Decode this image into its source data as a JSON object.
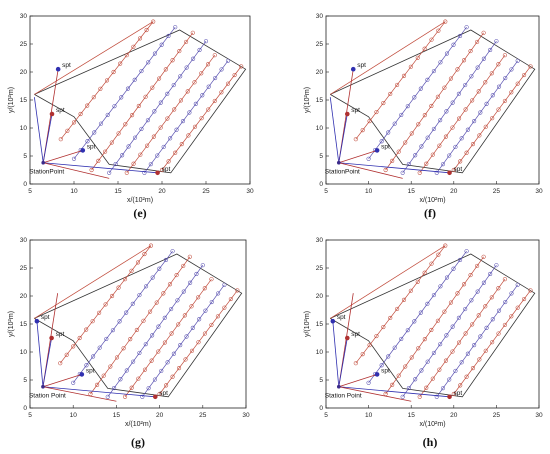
{
  "panel_labels": [
    "(e)",
    "(f)",
    "(g)",
    "(h)"
  ],
  "colors": {
    "boundary": "#333333",
    "red": "#c04a3a",
    "blue": "#5850b0",
    "station_red": "#b03030",
    "station_blue": "#3030b0"
  },
  "chart_data": [
    {
      "type": "line",
      "panel": "(e)",
      "xlabel": "x/(10²m)",
      "ylabel": "y/(10²m)",
      "xlim": [
        5,
        30
      ],
      "ylim": [
        0,
        30
      ],
      "xticks": [
        5,
        10,
        15,
        20,
        25,
        30
      ],
      "yticks": [
        0,
        5,
        10,
        15,
        20,
        25,
        30
      ],
      "station_point": {
        "label": "StationPoint",
        "x": 6.5,
        "y": 3.8
      },
      "spt_label": "spt",
      "boundary": [
        [
          5.5,
          16
        ],
        [
          10,
          12
        ],
        [
          14,
          3.5
        ],
        [
          21,
          2
        ],
        [
          29.5,
          20.5
        ],
        [
          22,
          27.5
        ],
        [
          5.5,
          16
        ]
      ],
      "spt_points": [
        {
          "label": "spt",
          "x": 8.2,
          "y": 20.5,
          "color": "blue"
        },
        {
          "label": "spt",
          "x": 7.5,
          "y": 12.5,
          "color": "red"
        },
        {
          "label": "spt",
          "x": 11,
          "y": 6,
          "color": "blue"
        },
        {
          "label": "spt",
          "x": 19.5,
          "y": 2,
          "color": "red"
        }
      ],
      "station_links": [
        [
          5.5,
          15.5
        ],
        [
          8.2,
          20.5
        ],
        [
          7.5,
          12.5
        ],
        [
          11,
          6
        ],
        [
          19.5,
          2
        ],
        [
          14,
          1
        ]
      ],
      "sweep_lines": [
        {
          "color": "red",
          "start": [
            8.5,
            8
          ],
          "end": [
            19,
            29
          ]
        },
        {
          "color": "blue",
          "start": [
            10,
            4.5
          ],
          "end": [
            21.5,
            28
          ]
        },
        {
          "color": "red",
          "start": [
            12,
            2.5
          ],
          "end": [
            23.5,
            27
          ]
        },
        {
          "color": "blue",
          "start": [
            14,
            2
          ],
          "end": [
            25,
            25.5
          ]
        },
        {
          "color": "red",
          "start": [
            16,
            2
          ],
          "end": [
            26,
            23
          ]
        },
        {
          "color": "blue",
          "start": [
            18,
            2
          ],
          "end": [
            27.5,
            22
          ]
        },
        {
          "color": "red",
          "start": [
            20,
            2.5
          ],
          "end": [
            29,
            21
          ]
        }
      ],
      "transit_lines": [
        {
          "color": "red",
          "start": [
            5.5,
            16
          ],
          "end": [
            19,
            29
          ]
        }
      ]
    },
    {
      "type": "line",
      "panel": "(f)",
      "xlabel": "x/(10²m)",
      "ylabel": "y/(10²m)",
      "xlim": [
        5,
        30
      ],
      "ylim": [
        0,
        30
      ],
      "xticks": [
        5,
        10,
        15,
        20,
        25,
        30
      ],
      "yticks": [
        0,
        5,
        10,
        15,
        20,
        25,
        30
      ],
      "station_point": {
        "label": "StationPoint",
        "x": 6.5,
        "y": 3.8
      },
      "spt_label": "spt",
      "boundary": [
        [
          5.5,
          16
        ],
        [
          10,
          12
        ],
        [
          14,
          3.5
        ],
        [
          21,
          2
        ],
        [
          29.5,
          20.5
        ],
        [
          22,
          27.5
        ],
        [
          5.5,
          16
        ]
      ],
      "spt_points": [
        {
          "label": "spt",
          "x": 8.2,
          "y": 20.5,
          "color": "blue"
        },
        {
          "label": "spt",
          "x": 7.5,
          "y": 12.5,
          "color": "red"
        },
        {
          "label": "spt",
          "x": 11,
          "y": 6,
          "color": "blue"
        },
        {
          "label": "spt",
          "x": 19.5,
          "y": 2,
          "color": "red"
        }
      ],
      "station_links": [
        [
          5.5,
          15.5
        ],
        [
          8.2,
          20.5
        ],
        [
          7.5,
          12.5
        ],
        [
          11,
          6
        ],
        [
          19.5,
          2
        ],
        [
          14,
          1
        ]
      ],
      "sweep_lines": [
        {
          "color": "red",
          "start": [
            8.5,
            8
          ],
          "end": [
            19,
            29
          ]
        },
        {
          "color": "blue",
          "start": [
            10,
            4.5
          ],
          "end": [
            21.5,
            28
          ]
        },
        {
          "color": "red",
          "start": [
            12,
            2.5
          ],
          "end": [
            23.5,
            27
          ]
        },
        {
          "color": "blue",
          "start": [
            14,
            2
          ],
          "end": [
            25,
            25.5
          ]
        },
        {
          "color": "red",
          "start": [
            16,
            2
          ],
          "end": [
            26,
            23
          ]
        },
        {
          "color": "blue",
          "start": [
            18,
            2
          ],
          "end": [
            27.5,
            22
          ]
        },
        {
          "color": "red",
          "start": [
            20,
            2.5
          ],
          "end": [
            29,
            21
          ]
        }
      ],
      "transit_lines": [
        {
          "color": "red",
          "start": [
            5.5,
            16
          ],
          "end": [
            19,
            29
          ]
        }
      ]
    },
    {
      "type": "line",
      "panel": "(g)",
      "xlabel": "x/(10²m)",
      "ylabel": "y/(10²m)",
      "xlim": [
        5,
        30
      ],
      "ylim": [
        0,
        30
      ],
      "xticks": [
        5,
        10,
        15,
        20,
        25,
        30
      ],
      "yticks": [
        0,
        5,
        10,
        15,
        20,
        25,
        30
      ],
      "station_point": {
        "label": "Station Point",
        "x": 6.5,
        "y": 3.8
      },
      "spt_label": "spt",
      "boundary": [
        [
          5.5,
          16
        ],
        [
          10,
          12
        ],
        [
          14,
          3.5
        ],
        [
          21,
          2
        ],
        [
          29.5,
          20.5
        ],
        [
          22,
          27.5
        ],
        [
          5.5,
          16
        ]
      ],
      "spt_points": [
        {
          "label": "spt",
          "x": 5.8,
          "y": 15.5,
          "color": "blue"
        },
        {
          "label": "spt",
          "x": 7.5,
          "y": 12.5,
          "color": "red"
        },
        {
          "label": "spt",
          "x": 11,
          "y": 6,
          "color": "blue"
        },
        {
          "label": "spt",
          "x": 19.5,
          "y": 2,
          "color": "red"
        }
      ],
      "station_links": [
        [
          5.8,
          15.5
        ],
        [
          8.2,
          20.5
        ],
        [
          7.5,
          12.5
        ],
        [
          11,
          6
        ],
        [
          19.5,
          2
        ],
        [
          15,
          1.2
        ]
      ],
      "sweep_lines": [
        {
          "color": "red",
          "start": [
            8.5,
            8
          ],
          "end": [
            19,
            29
          ]
        },
        {
          "color": "blue",
          "start": [
            10,
            4.5
          ],
          "end": [
            21.5,
            28
          ]
        },
        {
          "color": "red",
          "start": [
            12,
            2.5
          ],
          "end": [
            23.5,
            27
          ]
        },
        {
          "color": "blue",
          "start": [
            14,
            2
          ],
          "end": [
            25,
            25.5
          ]
        },
        {
          "color": "red",
          "start": [
            16,
            2
          ],
          "end": [
            26,
            23
          ]
        },
        {
          "color": "blue",
          "start": [
            18,
            2
          ],
          "end": [
            27.5,
            22
          ]
        },
        {
          "color": "red",
          "start": [
            20,
            2.5
          ],
          "end": [
            29,
            21
          ]
        }
      ],
      "transit_lines": [
        {
          "color": "red",
          "start": [
            5.5,
            16
          ],
          "end": [
            19,
            29
          ]
        }
      ]
    },
    {
      "type": "line",
      "panel": "(h)",
      "xlabel": "x/(10²m)",
      "ylabel": "y/(10²m)",
      "xlim": [
        5,
        30
      ],
      "ylim": [
        0,
        30
      ],
      "xticks": [
        5,
        10,
        15,
        20,
        25,
        30
      ],
      "yticks": [
        0,
        5,
        10,
        15,
        20,
        25,
        30
      ],
      "station_point": {
        "label": "Station Point",
        "x": 6.5,
        "y": 3.8
      },
      "spt_label": "spt",
      "boundary": [
        [
          5.5,
          16
        ],
        [
          10,
          12
        ],
        [
          14,
          3.5
        ],
        [
          21,
          2
        ],
        [
          29.5,
          20.5
        ],
        [
          22,
          27.5
        ],
        [
          5.5,
          16
        ]
      ],
      "spt_points": [
        {
          "label": "spt",
          "x": 5.8,
          "y": 15.5,
          "color": "blue"
        },
        {
          "label": "spt",
          "x": 7.5,
          "y": 12.5,
          "color": "red"
        },
        {
          "label": "spt",
          "x": 11,
          "y": 6,
          "color": "blue"
        },
        {
          "label": "spt",
          "x": 19.5,
          "y": 2,
          "color": "red"
        }
      ],
      "station_links": [
        [
          5.8,
          15.5
        ],
        [
          8.2,
          20.5
        ],
        [
          7.5,
          12.5
        ],
        [
          11,
          6
        ],
        [
          19.5,
          2
        ],
        [
          15,
          1.2
        ]
      ],
      "sweep_lines": [
        {
          "color": "red",
          "start": [
            8.5,
            8
          ],
          "end": [
            19,
            29
          ]
        },
        {
          "color": "blue",
          "start": [
            10,
            4.5
          ],
          "end": [
            21.5,
            28
          ]
        },
        {
          "color": "red",
          "start": [
            12,
            2.5
          ],
          "end": [
            23.5,
            27
          ]
        },
        {
          "color": "blue",
          "start": [
            14,
            2
          ],
          "end": [
            25,
            25.5
          ]
        },
        {
          "color": "red",
          "start": [
            16,
            2
          ],
          "end": [
            26,
            23
          ]
        },
        {
          "color": "blue",
          "start": [
            18,
            2
          ],
          "end": [
            27.5,
            22
          ]
        },
        {
          "color": "red",
          "start": [
            20,
            2.5
          ],
          "end": [
            29,
            21
          ]
        }
      ],
      "transit_lines": [
        {
          "color": "red",
          "start": [
            5.5,
            16
          ],
          "end": [
            19,
            29
          ]
        }
      ]
    }
  ]
}
